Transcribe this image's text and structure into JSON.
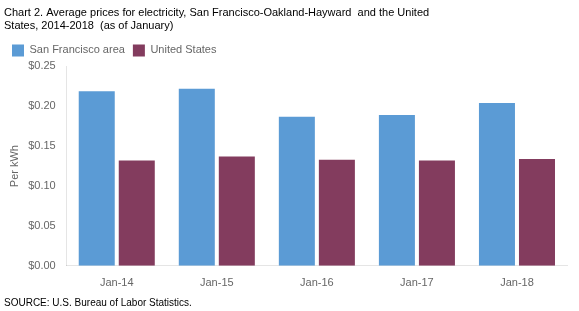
{
  "chart_data": {
    "type": "bar",
    "title": [
      "Chart 2. Average prices for electricity, San Francisco-Oakland-Hayward  and the United",
      "States, 2014-2018  (as of January)"
    ],
    "y_label": "Per kWh",
    "categories": [
      "Jan-14",
      "Jan-15",
      "Jan-16",
      "Jan-17",
      "Jan-18"
    ],
    "series": [
      {
        "name": "San Francisco area",
        "color": "#5B9BD5",
        "values": [
          0.219,
          0.222,
          0.187,
          0.189,
          0.204
        ]
      },
      {
        "name": "United States",
        "color": "#833C5E",
        "values": [
          0.132,
          0.137,
          0.133,
          0.132,
          0.134
        ]
      }
    ],
    "ylim": [
      0,
      0.25
    ],
    "yticks": [
      {
        "value": 0.0,
        "label": "$0.00"
      },
      {
        "value": 0.05,
        "label": "$0.05"
      },
      {
        "value": 0.1,
        "label": "$0.10"
      },
      {
        "value": 0.15,
        "label": "$0.15"
      },
      {
        "value": 0.2,
        "label": "$0.20"
      },
      {
        "value": 0.25,
        "label": "$0.25"
      }
    ],
    "grid": false,
    "legend": "upper left",
    "annotations": [
      "SOURCE: U.S. Bureau of Labor Statistics."
    ]
  }
}
